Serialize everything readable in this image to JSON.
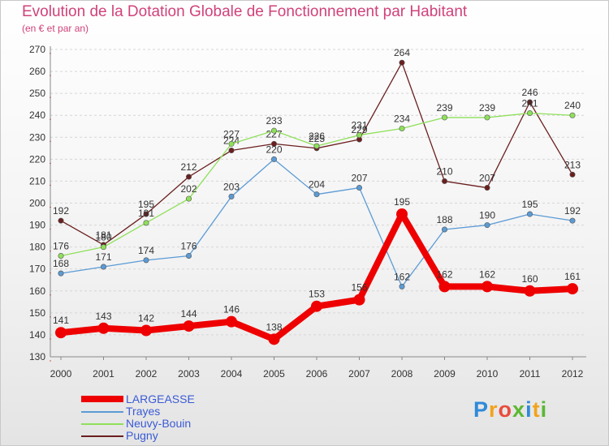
{
  "title": "Evolution de la Dotation Globale de Fonctionnement par Habitant",
  "subtitle": "(en € et par an)",
  "logo": {
    "letters": [
      "P",
      "r",
      "o",
      "x",
      "i",
      "t",
      "i"
    ],
    "colors": [
      "#2f8ad9",
      "#f2a31b",
      "#e84c3d",
      "#5bb833",
      "#2f8ad9",
      "#f2a31b",
      "#5bb833"
    ]
  },
  "chart_data": {
    "type": "line",
    "x": [
      "2000",
      "2001",
      "2002",
      "2003",
      "2004",
      "2005",
      "2006",
      "2007",
      "2008",
      "2009",
      "2010",
      "2011",
      "2012"
    ],
    "ylim": [
      130,
      270
    ],
    "yticks": [
      130,
      140,
      150,
      160,
      170,
      180,
      190,
      200,
      210,
      220,
      230,
      240,
      250,
      260,
      270
    ],
    "grid": "horizontal dashed",
    "legend_position": "bottom-left",
    "series": [
      {
        "name": "LARGEASSE",
        "color": "#ee0000",
        "values": [
          141,
          143,
          142,
          144,
          146,
          138,
          153,
          156,
          195,
          162,
          162,
          160,
          161
        ]
      },
      {
        "name": "Trayes",
        "color": "#5b9bd5",
        "values": [
          168,
          171,
          174,
          176,
          203,
          220,
          204,
          207,
          162,
          188,
          190,
          195,
          192
        ]
      },
      {
        "name": "Neuvy-Bouin",
        "color": "#8fe05a",
        "values": [
          176,
          180,
          191,
          202,
          227,
          233,
          226,
          231,
          234,
          239,
          239,
          241,
          240
        ]
      },
      {
        "name": "Pugny",
        "color": "#6b1f1f",
        "values": [
          192,
          181,
          195,
          212,
          224,
          227,
          225,
          229,
          264,
          210,
          207,
          246,
          213
        ]
      }
    ]
  }
}
